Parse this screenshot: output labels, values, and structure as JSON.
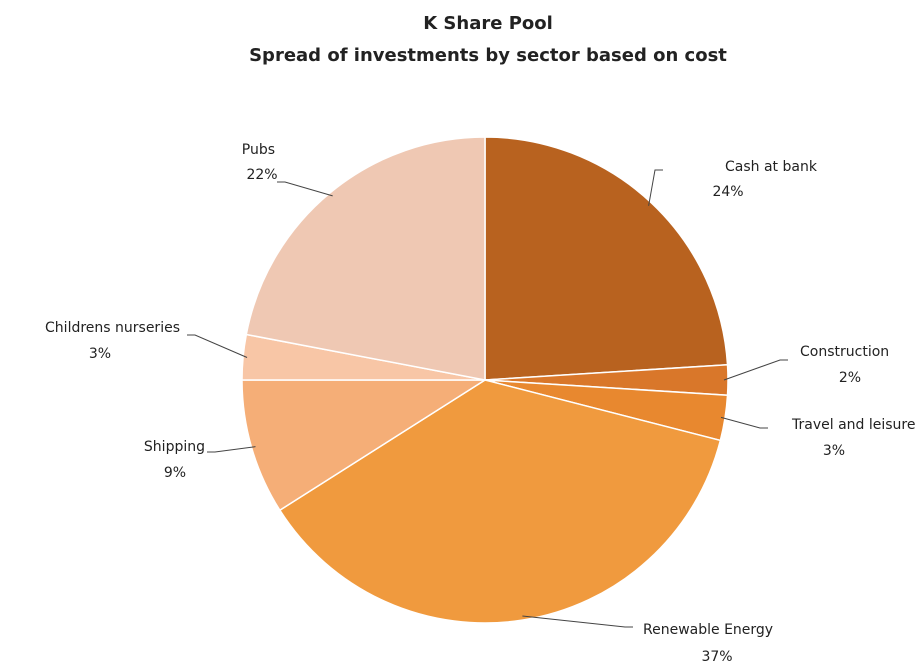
{
  "chart_data": {
    "type": "pie",
    "title": "K Share Pool",
    "subtitle": "Spread of investments by sector based on cost",
    "categories": [
      "Cash at bank",
      "Construction",
      "Travel and leisure",
      "Renewable Energy",
      "Shipping",
      "Childrens nurseries",
      "Pubs"
    ],
    "values": [
      24,
      2,
      3,
      37,
      9,
      3,
      22
    ],
    "value_labels": [
      "24%",
      "2%",
      "3%",
      "37%",
      "9%",
      "3%",
      "22%"
    ],
    "colors": [
      "#b8621f",
      "#d9772a",
      "#e8882f",
      "#f09a3e",
      "#f5ae77",
      "#f8c6a6",
      "#efc8b3"
    ]
  }
}
